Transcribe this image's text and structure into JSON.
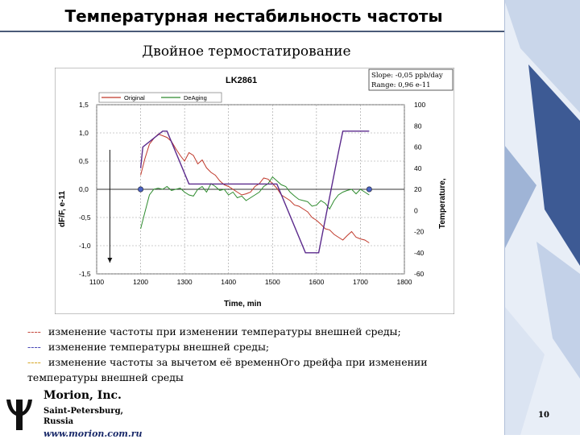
{
  "slide": {
    "title": "Температурная нестабильность частоты",
    "subtitle": "Двойное термостатирование",
    "page_number": "10"
  },
  "notes": {
    "line1": "изменение частоты при изменении температуры внешней среды;",
    "line2": "изменение температуры внешней среды;",
    "line3": "изменение частоты за вычетом её временнОго дрейфа при изменении",
    "line3_cont": "температуры внешней среды",
    "dash": "----"
  },
  "company": {
    "name": "Morion, Inc.",
    "city1": "Saint-Petersburg,",
    "city2": "Russia",
    "url": "www.morion.com.ru"
  },
  "colors": {
    "original": "#c0392b",
    "deaging": "#2e8b2e",
    "temperature": "#5b2a8c",
    "deco_blue": "#3d5a94"
  },
  "chart_data": {
    "type": "line",
    "title": "LK2861",
    "info_lines": [
      "Slope: -0,05 ppb/day",
      "Range: 0,96 e-11"
    ],
    "xlabel": "Time, min",
    "ylabel": "dF/F, e-11",
    "y2label": "Temperature,",
    "xlim": [
      1100,
      1800
    ],
    "ylim": [
      -1.5,
      1.5
    ],
    "y2lim": [
      -60,
      100
    ],
    "x_ticks": [
      "1100",
      "1200",
      "1300",
      "1400",
      "1500",
      "1600",
      "1700",
      "1800"
    ],
    "y_ticks": [
      "1,5",
      "1,0",
      "0,5",
      "0,0",
      "-0,5",
      "-1,0",
      "-1,5"
    ],
    "y2_ticks": [
      "100",
      "80",
      "60",
      "40",
      "20",
      "0",
      "-20",
      "-40",
      "-60"
    ],
    "legend": [
      "Original",
      "DeAging"
    ],
    "series": [
      {
        "name": "Original",
        "x": [
          1200,
          1210,
          1220,
          1230,
          1240,
          1250,
          1260,
          1270,
          1280,
          1290,
          1300,
          1310,
          1320,
          1330,
          1340,
          1350,
          1360,
          1370,
          1380,
          1390,
          1400,
          1410,
          1420,
          1430,
          1440,
          1450,
          1460,
          1470,
          1480,
          1490,
          1500,
          1510,
          1520,
          1530,
          1540,
          1550,
          1560,
          1570,
          1580,
          1590,
          1600,
          1610,
          1620,
          1630,
          1640,
          1650,
          1660,
          1670,
          1680,
          1690,
          1700,
          1710,
          1720
        ],
        "y": [
          0.25,
          0.55,
          0.8,
          0.9,
          0.98,
          0.95,
          0.92,
          0.85,
          0.72,
          0.6,
          0.5,
          0.65,
          0.6,
          0.45,
          0.52,
          0.38,
          0.3,
          0.25,
          0.15,
          0.08,
          0.05,
          0.0,
          -0.05,
          -0.1,
          -0.08,
          -0.05,
          0.05,
          0.1,
          0.2,
          0.18,
          0.1,
          0.02,
          -0.1,
          -0.15,
          -0.2,
          -0.28,
          -0.3,
          -0.35,
          -0.4,
          -0.5,
          -0.55,
          -0.62,
          -0.7,
          -0.72,
          -0.8,
          -0.85,
          -0.9,
          -0.82,
          -0.75,
          -0.85,
          -0.88,
          -0.9,
          -0.95
        ]
      },
      {
        "name": "DeAging",
        "x": [
          1200,
          1210,
          1220,
          1230,
          1240,
          1250,
          1260,
          1270,
          1280,
          1290,
          1300,
          1310,
          1320,
          1330,
          1340,
          1350,
          1360,
          1370,
          1380,
          1390,
          1400,
          1410,
          1420,
          1430,
          1440,
          1450,
          1460,
          1470,
          1480,
          1490,
          1500,
          1510,
          1520,
          1530,
          1540,
          1550,
          1560,
          1570,
          1580,
          1590,
          1600,
          1610,
          1620,
          1630,
          1640,
          1650,
          1660,
          1670,
          1680,
          1690,
          1700,
          1710,
          1720
        ],
        "y": [
          -0.7,
          -0.4,
          -0.1,
          0.0,
          0.02,
          0.0,
          0.05,
          -0.02,
          0.0,
          0.02,
          -0.05,
          -0.1,
          -0.12,
          0.0,
          0.05,
          -0.05,
          0.1,
          0.05,
          -0.02,
          0.0,
          -0.1,
          -0.05,
          -0.15,
          -0.12,
          -0.2,
          -0.15,
          -0.1,
          -0.05,
          0.05,
          0.1,
          0.22,
          0.15,
          0.08,
          0.05,
          -0.05,
          -0.12,
          -0.18,
          -0.2,
          -0.22,
          -0.3,
          -0.28,
          -0.2,
          -0.25,
          -0.35,
          -0.2,
          -0.1,
          -0.05,
          -0.02,
          0.0,
          -0.08,
          0.0,
          -0.05,
          -0.1
        ]
      },
      {
        "name": "Temperature",
        "axis": "y2",
        "x": [
          1200,
          1205,
          1250,
          1260,
          1310,
          1320,
          1440,
          1450,
          1500,
          1510,
          1575,
          1580,
          1605,
          1650,
          1660,
          1720
        ],
        "y": [
          40,
          60,
          75,
          75,
          25,
          25,
          25,
          25,
          25,
          25,
          -40,
          -40,
          -40,
          55,
          75,
          75
        ]
      }
    ],
    "markers": [
      {
        "x": 1200,
        "y": 0.0
      },
      {
        "x": 1720,
        "y": 0.0
      }
    ],
    "arrow": {
      "x": 1130,
      "from_y": 0.7,
      "to_y": -1.3
    },
    "grid": true
  }
}
